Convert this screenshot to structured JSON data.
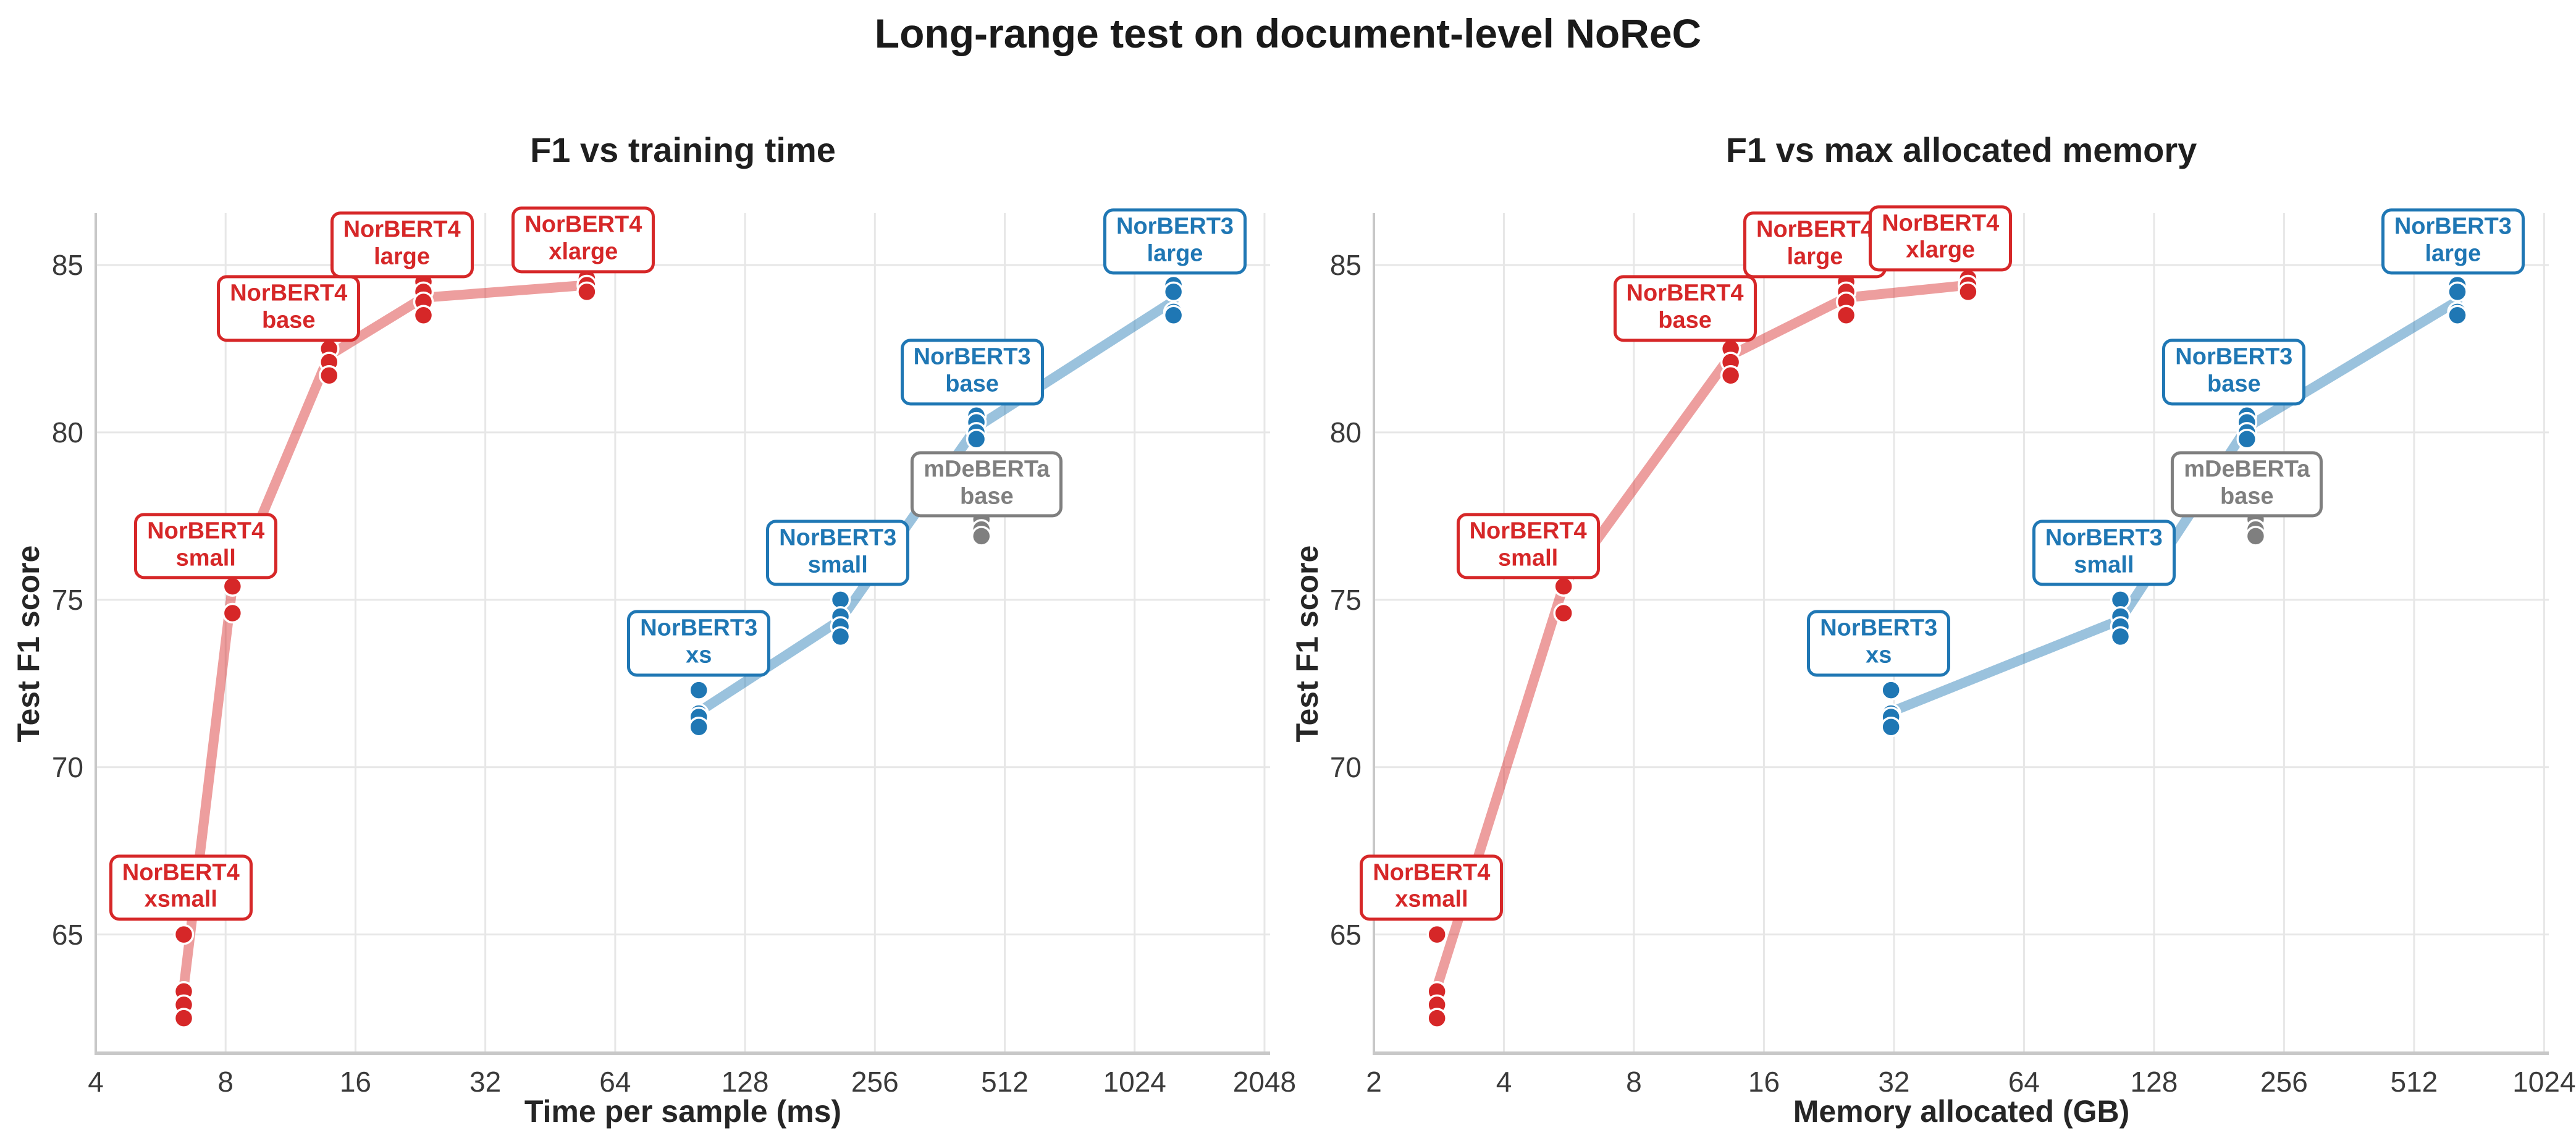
{
  "page": {
    "title": "Long-range test on document-level NoReC"
  },
  "colors": {
    "norbert4_red": "#d62728",
    "norbert3_blue": "#1f77b4",
    "mdeberta_gray": "#7f7f7f",
    "grid": "#e7e7e7",
    "spine": "#c8c8c8",
    "tick_text": "#3a3a3a",
    "title_text": "#1a1a1a",
    "background": "#ffffff"
  },
  "chart_data": {
    "type": "scatter",
    "suptitle": "Long-range test on document-level NoReC",
    "legend": "none",
    "charts": [
      {
        "id": "time",
        "title": "F1 vs training time",
        "xlabel": "Time per sample (ms)",
        "ylabel": "Test F1 score",
        "x_scale": "log2",
        "grid": true,
        "x_ticks": [
          4,
          8,
          16,
          32,
          64,
          128,
          256,
          512,
          1024,
          2048
        ],
        "y_ticks": [
          65,
          70,
          75,
          80,
          85
        ],
        "x_range": [
          4,
          2110
        ],
        "y_range": [
          61.45,
          86.55
        ],
        "x_key": "time_ms",
        "label_key": "label_time"
      },
      {
        "id": "memory",
        "title": "F1 vs max allocated memory",
        "xlabel": "Memory allocated (GB)",
        "ylabel": "Test F1 score",
        "x_scale": "log2",
        "grid": true,
        "x_ticks": [
          2,
          4,
          8,
          16,
          32,
          64,
          128,
          256,
          512,
          1024
        ],
        "y_ticks": [
          65,
          70,
          75,
          80,
          85
        ],
        "x_range": [
          2,
          1050
        ],
        "y_range": [
          61.45,
          86.55
        ],
        "x_key": "memory_gb",
        "label_key": "label_mem"
      }
    ],
    "series": [
      {
        "name": "NorBERT4",
        "color_key": "norbert4_red",
        "connected": true,
        "models": [
          {
            "size": "xsmall",
            "label_lines": [
              "NorBERT4",
              "xsmall"
            ],
            "time_ms": 6.4,
            "memory_gb": 2.8,
            "f1_runs": [
              65.0,
              63.3,
              62.9,
              62.5
            ],
            "label_time": {
              "x": 6.3,
              "y": 66.4
            },
            "label_mem": {
              "x": 2.72,
              "y": 66.4
            }
          },
          {
            "size": "small",
            "label_lines": [
              "NorBERT4",
              "small"
            ],
            "time_ms": 8.3,
            "memory_gb": 5.5,
            "f1_runs": [
              76.0,
              75.7,
              75.4,
              74.6
            ],
            "label_time": {
              "x": 7.2,
              "y": 76.6
            },
            "label_mem": {
              "x": 4.55,
              "y": 76.6
            }
          },
          {
            "size": "base",
            "label_lines": [
              "NorBERT4",
              "base"
            ],
            "time_ms": 13.9,
            "memory_gb": 13.4,
            "f1_runs": [
              82.9,
              82.5,
              82.1,
              81.7
            ],
            "label_time": {
              "x": 11.2,
              "y": 83.7
            },
            "label_mem": {
              "x": 10.5,
              "y": 83.7
            }
          },
          {
            "size": "large",
            "label_lines": [
              "NorBERT4",
              "large"
            ],
            "time_ms": 23,
            "memory_gb": 24.8,
            "f1_runs": [
              84.5,
              84.2,
              83.9,
              83.5
            ],
            "label_time": {
              "x": 20.5,
              "y": 85.6
            },
            "label_mem": {
              "x": 21,
              "y": 85.6
            }
          },
          {
            "size": "xlarge",
            "label_lines": [
              "NorBERT4",
              "xlarge"
            ],
            "time_ms": 55,
            "memory_gb": 47.5,
            "f1_runs": [
              84.6,
              84.4,
              84.2
            ],
            "label_time": {
              "x": 54,
              "y": 85.75
            },
            "label_mem": {
              "x": 41,
              "y": 85.8
            }
          }
        ]
      },
      {
        "name": "NorBERT3",
        "color_key": "norbert3_blue",
        "connected": true,
        "models": [
          {
            "size": "xs",
            "label_lines": [
              "NorBERT3",
              "xs"
            ],
            "time_ms": 100,
            "memory_gb": 31.5,
            "f1_runs": [
              72.3,
              71.6,
              71.5,
              71.2
            ],
            "label_time": {
              "x": 100,
              "y": 73.7
            },
            "label_mem": {
              "x": 29.5,
              "y": 73.7
            }
          },
          {
            "size": "small",
            "label_lines": [
              "NorBERT3",
              "small"
            ],
            "time_ms": 213,
            "memory_gb": 107,
            "f1_runs": [
              75.0,
              74.5,
              74.2,
              73.9
            ],
            "label_time": {
              "x": 210,
              "y": 76.4
            },
            "label_mem": {
              "x": 98,
              "y": 76.4
            }
          },
          {
            "size": "base",
            "label_lines": [
              "NorBERT3",
              "base"
            ],
            "time_ms": 440,
            "memory_gb": 210,
            "f1_runs": [
              80.5,
              80.3,
              80.0,
              79.8
            ],
            "label_time": {
              "x": 430,
              "y": 81.8
            },
            "label_mem": {
              "x": 196,
              "y": 81.8
            }
          },
          {
            "size": "large",
            "label_lines": [
              "NorBERT3",
              "large"
            ],
            "time_ms": 1260,
            "memory_gb": 645,
            "f1_runs": [
              84.4,
              84.2,
              83.6,
              83.5
            ],
            "label_time": {
              "x": 1270,
              "y": 85.7
            },
            "label_mem": {
              "x": 630,
              "y": 85.7
            }
          }
        ]
      },
      {
        "name": "mDeBERTa",
        "color_key": "mdeberta_gray",
        "connected": false,
        "models": [
          {
            "size": "base",
            "label_lines": [
              "mDeBERTa",
              "base"
            ],
            "time_ms": 452,
            "memory_gb": 220,
            "f1_runs": [
              77.4,
              77.1,
              76.9
            ],
            "label_time": {
              "x": 465,
              "y": 78.45
            },
            "label_mem": {
              "x": 210,
              "y": 78.45
            }
          }
        ]
      }
    ]
  }
}
